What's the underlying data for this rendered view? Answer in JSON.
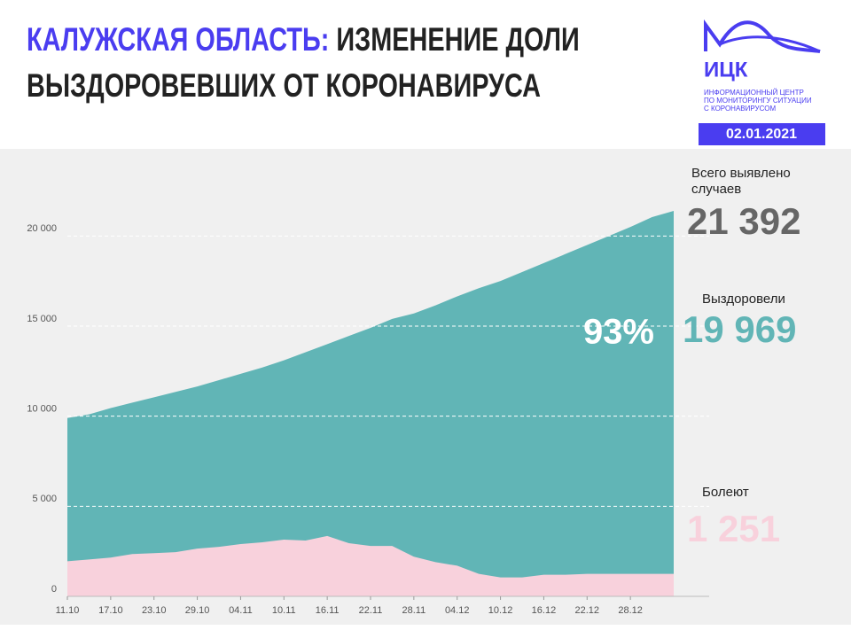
{
  "header": {
    "title_highlight": "КАЛУЖСКАЯ ОБЛАСТЬ:",
    "title_rest_1": "ИЗМЕНЕНИЕ ДОЛИ",
    "title_rest_2": "ВЫЗДОРОВЕВШИХ ОТ КОРОНАВИРУСА",
    "logo": "ИЦК",
    "logo_lines": [
      "ИНФОРМАЦИОННЫЙ ЦЕНТР",
      "ПО МОНИТОРИНГУ СИТУАЦИИ",
      "С КОРОНАВИРУСОМ"
    ],
    "date": "02.01.2021"
  },
  "chart_data": {
    "type": "area",
    "categories": [
      "11.10",
      null,
      "17.10",
      null,
      "23.10",
      null,
      "29.10",
      null,
      "04.11",
      null,
      "10.11",
      null,
      "16.11",
      null,
      "22.11",
      null,
      "28.11",
      null,
      "04.12",
      null,
      "10.12",
      null,
      "16.12",
      null,
      "22.12",
      null,
      "28.12",
      null,
      null
    ],
    "series": [
      {
        "name": "Всего выявлено случаев",
        "color": "#61b5b6",
        "values": [
          9900,
          10100,
          10450,
          10750,
          11050,
          11350,
          11650,
          12000,
          12350,
          12700,
          13100,
          13550,
          14000,
          14450,
          14900,
          15400,
          15700,
          16150,
          16650,
          17100,
          17500,
          18000,
          18500,
          19000,
          19500,
          20000,
          20500,
          21050,
          21392
        ]
      },
      {
        "name": "Болеют",
        "color": "#f8d1dc",
        "values": [
          1950,
          2050,
          2150,
          2350,
          2400,
          2450,
          2650,
          2750,
          2900,
          3000,
          3150,
          3100,
          3350,
          2950,
          2800,
          2800,
          2200,
          1900,
          1700,
          1250,
          1050,
          1050,
          1200,
          1200,
          1250,
          1250,
          1250,
          1250,
          1251
        ]
      }
    ],
    "ylim": [
      0,
      24000
    ],
    "yticks": [
      0,
      {
        "value": 5000,
        "label": "5 000"
      },
      {
        "value": 10000,
        "label": "10 000"
      },
      {
        "value": 15000,
        "label": "15 000"
      },
      {
        "value": 20000,
        "label": "20 000"
      }
    ],
    "grid": true,
    "annotations": [
      {
        "text": "21 392",
        "color": "#666666"
      },
      {
        "text": "Выздоровели",
        "color": "#222222"
      },
      {
        "text": "19 969",
        "color": "#61b5b6"
      },
      {
        "text": "93%",
        "color": "#ffffff"
      },
      {
        "text": "1 251",
        "color": "#f8d1dc"
      }
    ]
  }
}
